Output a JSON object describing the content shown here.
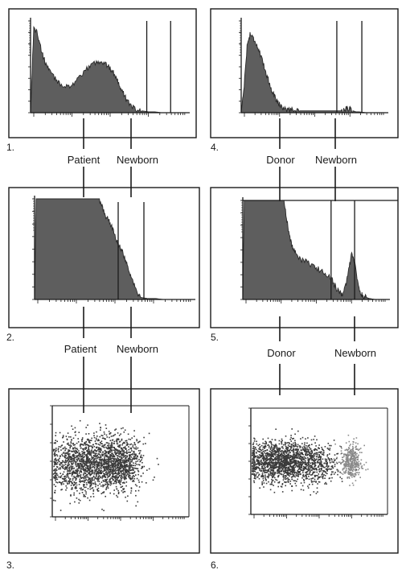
{
  "panels": [
    {
      "number": "1."
    },
    {
      "number": "2."
    },
    {
      "number": "3."
    },
    {
      "number": "4."
    },
    {
      "number": "5."
    },
    {
      "number": "6."
    }
  ],
  "connector_labels": {
    "left_top": [
      "Patient",
      "Newborn"
    ],
    "left_bottom": [
      "Patient",
      "Newborn"
    ],
    "right_top": [
      "Donor",
      "Newborn"
    ],
    "right_bottom": [
      "Donor",
      "Newborn"
    ]
  },
  "colors": {
    "fill": "#5e5e5e",
    "stroke": "#2a2a2a",
    "frame": "#1a1a1a",
    "dots_dark": "#3a3a3a",
    "dots_light": "#8a8a8a"
  },
  "chart_data": [
    {
      "panel": "1",
      "type": "area",
      "title": "",
      "xlabel": "",
      "ylabel": "",
      "xlim": [
        0,
        100
      ],
      "ylim": [
        0,
        100
      ],
      "series": [
        {
          "x": [
            0,
            2,
            4,
            6,
            8,
            10,
            12,
            15,
            18,
            22,
            26,
            30,
            34,
            38,
            42,
            45,
            48,
            50,
            52,
            54,
            56,
            58,
            60,
            63,
            66,
            70,
            74,
            78,
            82,
            86,
            90,
            94,
            100
          ],
          "values": [
            0,
            92,
            88,
            74,
            60,
            52,
            45,
            38,
            32,
            29,
            30,
            36,
            45,
            52,
            56,
            55,
            52,
            48,
            44,
            38,
            30,
            22,
            15,
            8,
            4,
            2,
            1,
            1,
            0,
            0,
            0,
            0,
            0
          ]
        }
      ],
      "gates": [
        73,
        88
      ]
    },
    {
      "panel": "2",
      "type": "area",
      "title": "",
      "xlabel": "",
      "ylabel": "",
      "xlim": [
        0,
        100
      ],
      "ylim": [
        0,
        100
      ],
      "series": [
        {
          "x": [
            0,
            1,
            40,
            42,
            44,
            46,
            48,
            50,
            52,
            54,
            56,
            58,
            60,
            62,
            64,
            66,
            70,
            75,
            80,
            90,
            100
          ],
          "values": [
            0,
            100,
            100,
            92,
            84,
            78,
            72,
            64,
            56,
            50,
            42,
            32,
            22,
            14,
            6,
            2,
            1,
            1,
            0,
            0,
            0
          ]
        }
      ],
      "gates": [
        52,
        68
      ]
    },
    {
      "panel": "3",
      "type": "scatter",
      "title": "",
      "xlabel": "",
      "ylabel": "",
      "xlim": [
        0,
        100
      ],
      "ylim": [
        0,
        100
      ],
      "populations": [
        {
          "cx": 25,
          "cy": 48,
          "sx": 14,
          "sy": 13,
          "count": 1400,
          "tone": "dark"
        },
        {
          "cx": 50,
          "cy": 48,
          "sx": 8,
          "sy": 12,
          "count": 700,
          "tone": "dark"
        }
      ]
    },
    {
      "panel": "4",
      "type": "area",
      "title": "",
      "xlabel": "",
      "ylabel": "",
      "xlim": [
        0,
        100
      ],
      "ylim": [
        0,
        100
      ],
      "series": [
        {
          "x": [
            0,
            2,
            4,
            6,
            8,
            10,
            12,
            14,
            16,
            18,
            20,
            22,
            24,
            26,
            28,
            30,
            33,
            36,
            40,
            45,
            50,
            55,
            60,
            65,
            68,
            70,
            72,
            74,
            76,
            78,
            80,
            85,
            90,
            100
          ],
          "values": [
            0,
            30,
            72,
            86,
            82,
            76,
            68,
            58,
            48,
            38,
            28,
            20,
            14,
            9,
            6,
            4,
            3,
            3,
            2,
            2,
            2,
            2,
            2,
            2,
            2,
            3,
            5,
            4,
            2,
            1,
            1,
            0,
            0,
            0
          ]
        }
      ],
      "gates": [
        65,
        82
      ]
    },
    {
      "panel": "5",
      "type": "area",
      "title": "",
      "xlabel": "",
      "ylabel": "",
      "xlim": [
        0,
        100
      ],
      "ylim": [
        0,
        100
      ],
      "series": [
        {
          "x": [
            0,
            1,
            28,
            30,
            32,
            34,
            36,
            40,
            44,
            48,
            52,
            56,
            60,
            62,
            64,
            66,
            68,
            70,
            72,
            74,
            76,
            78,
            80,
            82,
            84,
            86,
            90,
            95,
            100
          ],
          "values": [
            0,
            100,
            100,
            80,
            62,
            52,
            46,
            40,
            37,
            33,
            30,
            26,
            22,
            16,
            10,
            6,
            6,
            14,
            30,
            46,
            38,
            18,
            6,
            3,
            2,
            1,
            0,
            0,
            0
          ]
        }
      ],
      "gates": [
        60,
        76
      ]
    },
    {
      "panel": "6",
      "type": "scatter",
      "title": "",
      "xlabel": "",
      "ylabel": "",
      "xlim": [
        0,
        100
      ],
      "ylim": [
        0,
        100
      ],
      "populations": [
        {
          "cx": 20,
          "cy": 50,
          "sx": 12,
          "sy": 9,
          "count": 1300,
          "tone": "dark"
        },
        {
          "cx": 45,
          "cy": 50,
          "sx": 10,
          "sy": 10,
          "count": 500,
          "tone": "dark"
        },
        {
          "cx": 73,
          "cy": 50,
          "sx": 4,
          "sy": 8,
          "count": 380,
          "tone": "light"
        }
      ]
    }
  ]
}
